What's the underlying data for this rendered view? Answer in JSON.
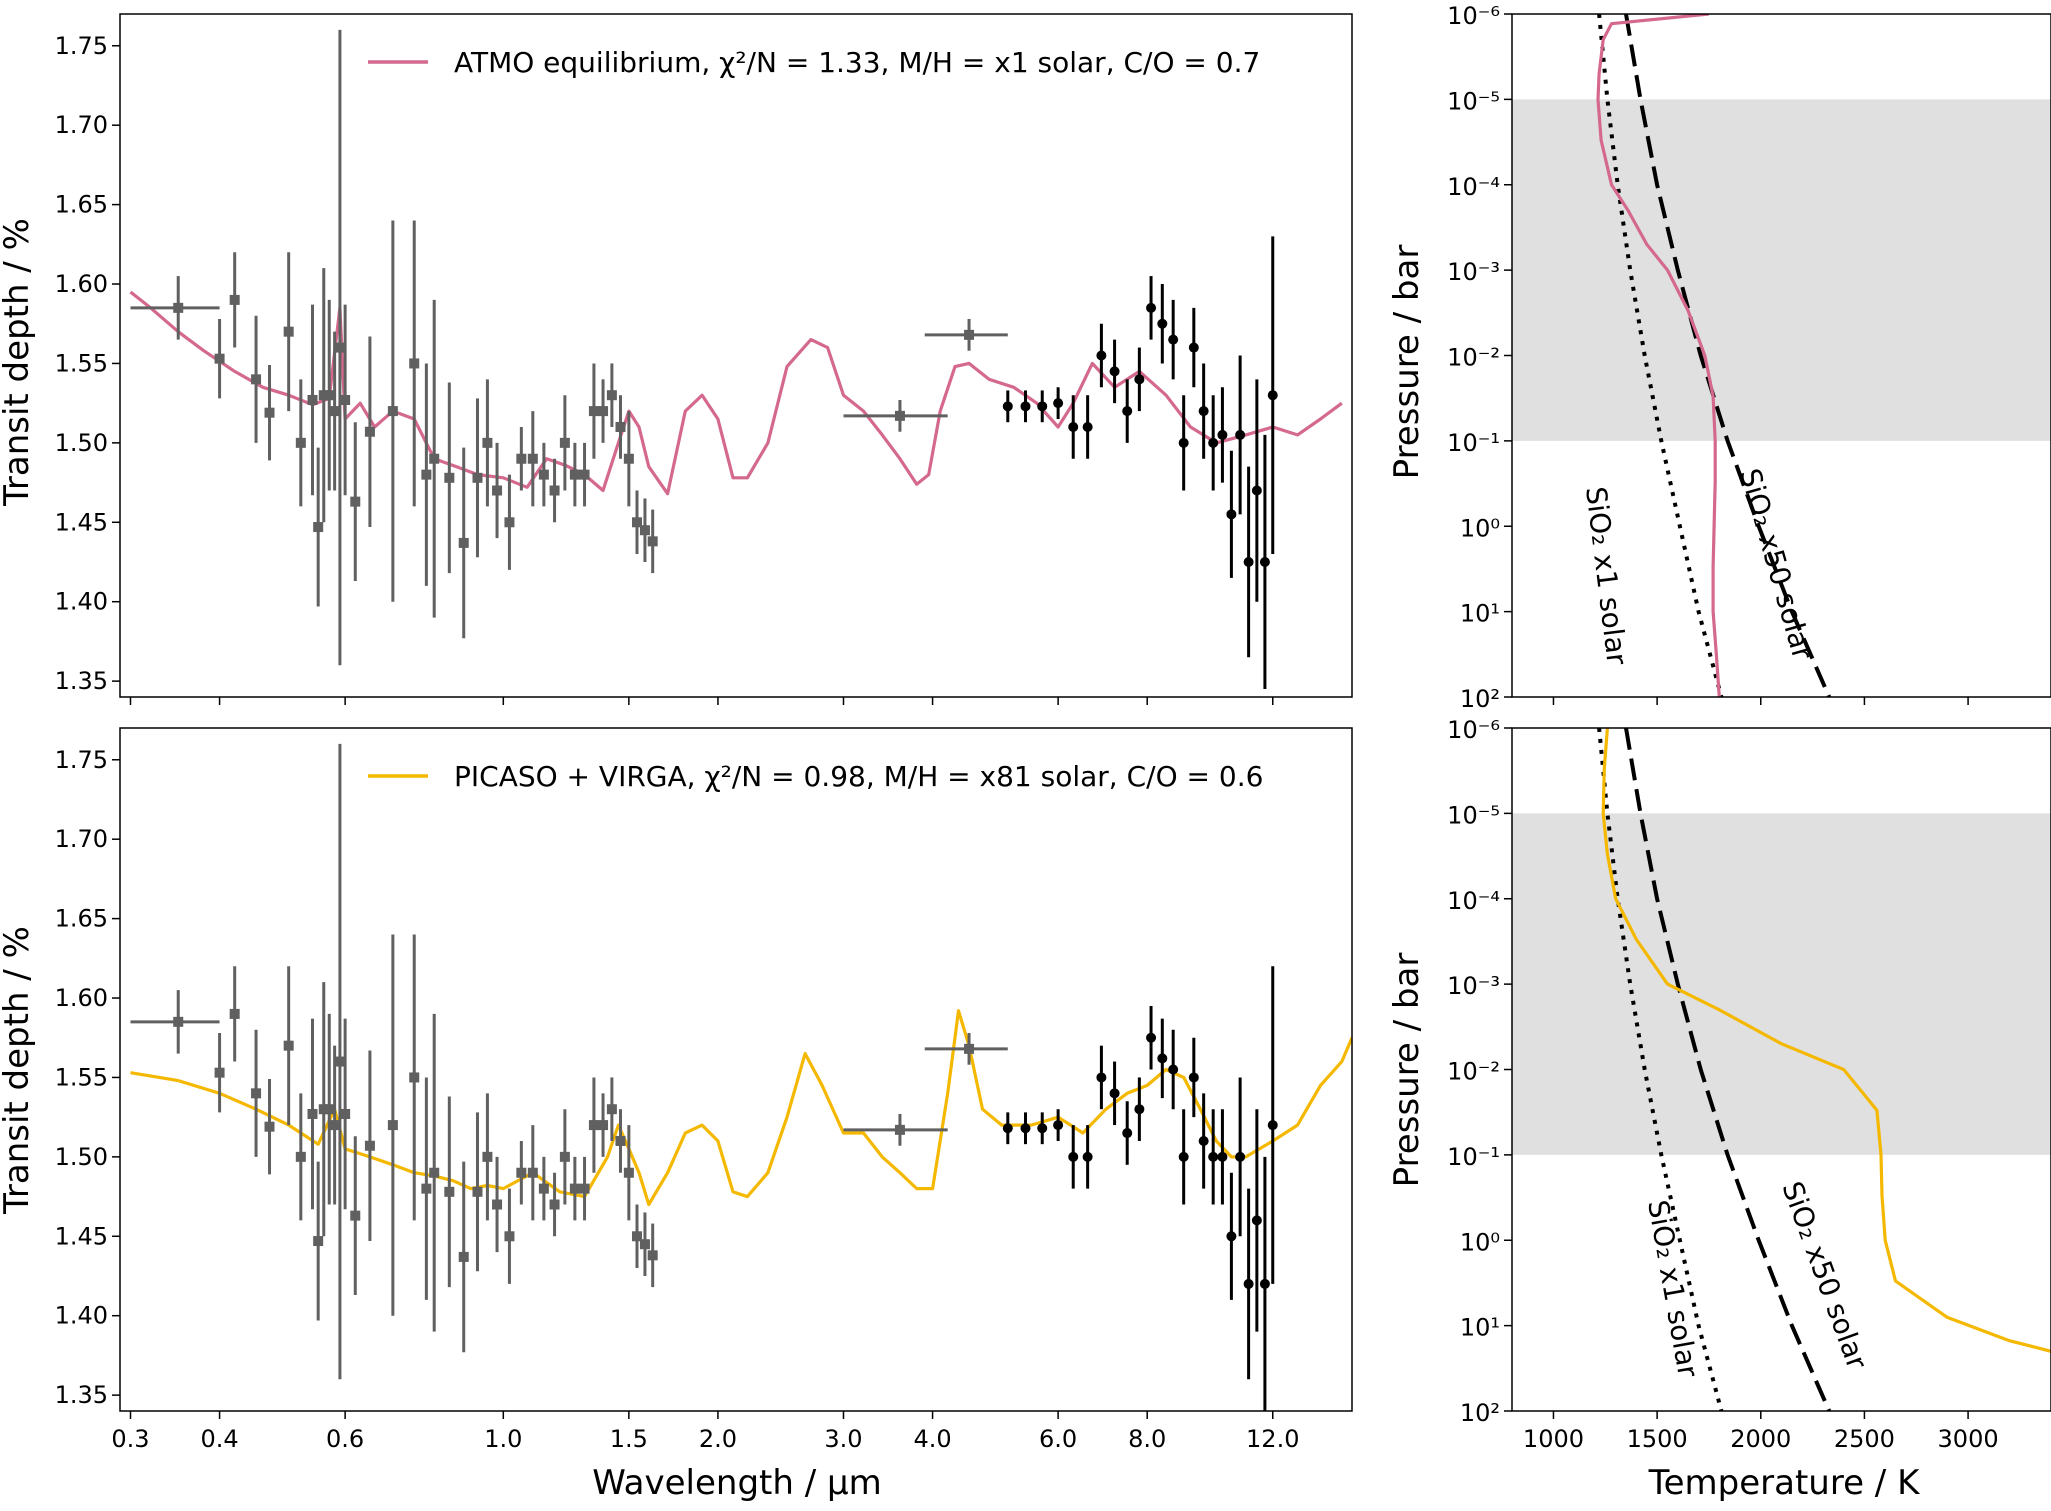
{
  "colors": {
    "atmo": "#d4688e",
    "picaso": "#f5b800",
    "hst": "#606060",
    "jwst": "#000000",
    "band": "#e0e0e0"
  },
  "labels": {
    "top_ylabel": "Transit depth / %",
    "bottom_ylabel": "Transit depth / %",
    "xlabel": "Wavelength / µm",
    "pt_top_ylabel": "Pressure / bar",
    "pt_bottom_ylabel": "Pressure / bar",
    "pt_xlabel": "Temperature / K",
    "legend_top": "ATMO equilibrium, χ²/N = 1.33, M/H = x1 solar, C/O = 0.7",
    "legend_bottom": "PICASO + VIRGA, χ²/N = 0.98, M/H = x81 solar, C/O = 0.6",
    "annot_x1": "SiO₂ x1 solar",
    "annot_x50": "SiO₂ x50 solar"
  },
  "chart_data": [
    {
      "type": "line",
      "panel": "top-left",
      "title": "",
      "xlabel": "",
      "ylabel": "Transit depth / %",
      "xscale": "log",
      "xlim": [
        0.29,
        15.5
      ],
      "ylim": [
        1.34,
        1.77
      ],
      "xticks": [
        0.3,
        0.4,
        0.6,
        1.0,
        1.5,
        2.0,
        3.0,
        4.0,
        6.0,
        8.0,
        12.0
      ],
      "xtick_labels": [],
      "yticks": [
        1.35,
        1.4,
        1.45,
        1.5,
        1.55,
        1.6,
        1.65,
        1.7,
        1.75
      ],
      "ytick_labels": [
        "1.35",
        "1.40",
        "1.45",
        "1.50",
        "1.55",
        "1.60",
        "1.65",
        "1.70",
        "1.75"
      ],
      "legend": "top-right",
      "model": {
        "name": "ATMO equilibrium, χ²/N = 1.33, M/H = x1 solar, C/O = 0.7",
        "x": [
          0.3,
          0.32,
          0.35,
          0.38,
          0.42,
          0.46,
          0.5,
          0.54,
          0.57,
          0.59,
          0.6,
          0.63,
          0.66,
          0.7,
          0.75,
          0.8,
          0.86,
          0.92,
          1.0,
          1.08,
          1.15,
          1.22,
          1.3,
          1.38,
          1.45,
          1.5,
          1.55,
          1.6,
          1.7,
          1.8,
          1.9,
          2.0,
          2.1,
          2.2,
          2.35,
          2.5,
          2.7,
          2.85,
          3.0,
          3.2,
          3.4,
          3.6,
          3.8,
          3.95,
          4.1,
          4.3,
          4.5,
          4.8,
          5.2,
          5.6,
          6.0,
          6.3,
          6.7,
          7.2,
          7.8,
          8.5,
          9.2,
          10.0,
          11.0,
          12.0,
          13.0,
          14.0,
          15.0
        ],
        "y": [
          1.595,
          1.585,
          1.57,
          1.558,
          1.545,
          1.535,
          1.53,
          1.524,
          1.528,
          1.585,
          1.515,
          1.525,
          1.51,
          1.52,
          1.515,
          1.49,
          1.485,
          1.48,
          1.478,
          1.472,
          1.49,
          1.486,
          1.48,
          1.47,
          1.5,
          1.52,
          1.51,
          1.485,
          1.468,
          1.52,
          1.53,
          1.515,
          1.478,
          1.478,
          1.5,
          1.548,
          1.565,
          1.56,
          1.53,
          1.52,
          1.505,
          1.49,
          1.474,
          1.48,
          1.52,
          1.548,
          1.55,
          1.54,
          1.535,
          1.525,
          1.51,
          1.525,
          1.55,
          1.535,
          1.545,
          1.53,
          1.51,
          1.5,
          1.505,
          1.51,
          1.505,
          1.515,
          1.525
        ]
      },
      "hst_points": {
        "x": [
          0.35,
          0.4,
          0.42,
          0.45,
          0.47,
          0.5,
          0.52,
          0.54,
          0.55,
          0.56,
          0.57,
          0.58,
          0.59,
          0.6,
          0.62,
          0.65,
          0.7,
          0.75,
          0.78,
          0.8,
          0.84,
          0.88,
          0.92,
          0.95,
          0.98,
          1.02,
          1.06,
          1.1,
          1.14,
          1.18,
          1.22,
          1.26,
          1.3,
          1.34,
          1.38,
          1.42,
          1.46,
          1.5,
          1.54,
          1.58,
          1.62,
          3.6,
          4.5
        ],
        "y": [
          1.585,
          1.553,
          1.59,
          1.54,
          1.519,
          1.57,
          1.5,
          1.527,
          1.447,
          1.53,
          1.53,
          1.52,
          1.56,
          1.527,
          1.463,
          1.507,
          1.52,
          1.55,
          1.48,
          1.49,
          1.478,
          1.437,
          1.478,
          1.5,
          1.47,
          1.45,
          1.49,
          1.49,
          1.48,
          1.47,
          1.5,
          1.48,
          1.48,
          1.52,
          1.52,
          1.53,
          1.51,
          1.49,
          1.45,
          1.445,
          1.438,
          1.517,
          1.568
        ],
        "yerr": [
          0.02,
          0.025,
          0.03,
          0.04,
          0.03,
          0.05,
          0.04,
          0.06,
          0.05,
          0.08,
          0.06,
          0.05,
          0.2,
          0.06,
          0.05,
          0.06,
          0.12,
          0.09,
          0.07,
          0.1,
          0.06,
          0.06,
          0.05,
          0.04,
          0.03,
          0.03,
          0.02,
          0.03,
          0.02,
          0.02,
          0.03,
          0.02,
          0.02,
          0.03,
          0.02,
          0.02,
          0.02,
          0.03,
          0.02,
          0.02,
          0.02,
          0.01,
          0.01
        ],
        "xerr": [
          0.05,
          0,
          0,
          0,
          0,
          0,
          0,
          0,
          0,
          0,
          0,
          0,
          0,
          0,
          0,
          0,
          0,
          0,
          0,
          0,
          0,
          0,
          0,
          0,
          0,
          0,
          0,
          0,
          0,
          0,
          0,
          0,
          0,
          0,
          0,
          0,
          0,
          0,
          0,
          0,
          0,
          0.6,
          0.6
        ]
      },
      "jwst_points": {
        "x": [
          5.1,
          5.4,
          5.7,
          6.0,
          6.3,
          6.6,
          6.9,
          7.2,
          7.5,
          7.8,
          8.1,
          8.4,
          8.7,
          9.0,
          9.3,
          9.6,
          9.9,
          10.2,
          10.5,
          10.8,
          11.1,
          11.4,
          11.7,
          12.0
        ],
        "y": [
          1.523,
          1.523,
          1.523,
          1.525,
          1.51,
          1.51,
          1.555,
          1.545,
          1.52,
          1.54,
          1.585,
          1.575,
          1.565,
          1.5,
          1.56,
          1.52,
          1.5,
          1.505,
          1.455,
          1.505,
          1.425,
          1.47,
          1.425,
          1.53
        ],
        "yerr": [
          0.01,
          0.01,
          0.01,
          0.01,
          0.02,
          0.02,
          0.02,
          0.02,
          0.02,
          0.02,
          0.02,
          0.025,
          0.025,
          0.03,
          0.025,
          0.03,
          0.03,
          0.03,
          0.04,
          0.05,
          0.06,
          0.07,
          0.08,
          0.1
        ]
      }
    },
    {
      "type": "line",
      "panel": "bottom-left",
      "title": "",
      "xlabel": "Wavelength / µm",
      "ylabel": "Transit depth / %",
      "xscale": "log",
      "xlim": [
        0.29,
        15.5
      ],
      "ylim": [
        1.34,
        1.77
      ],
      "xticks": [
        0.3,
        0.4,
        0.6,
        1.0,
        1.5,
        2.0,
        3.0,
        4.0,
        6.0,
        8.0,
        12.0
      ],
      "xtick_labels": [
        "0.3",
        "0.4",
        "0.6",
        "1.0",
        "1.5",
        "2.0",
        "3.0",
        "4.0",
        "6.0",
        "8.0",
        "12.0"
      ],
      "yticks": [
        1.35,
        1.4,
        1.45,
        1.5,
        1.55,
        1.6,
        1.65,
        1.7,
        1.75
      ],
      "ytick_labels": [
        "1.35",
        "1.40",
        "1.45",
        "1.50",
        "1.55",
        "1.60",
        "1.65",
        "1.70",
        "1.75"
      ],
      "legend": "top-right",
      "model": {
        "name": "PICASO + VIRGA, χ²/N = 0.98, M/H = x81 solar, C/O = 0.6",
        "x": [
          0.3,
          0.35,
          0.4,
          0.45,
          0.5,
          0.55,
          0.58,
          0.6,
          0.65,
          0.7,
          0.75,
          0.8,
          0.85,
          0.9,
          0.95,
          1.0,
          1.1,
          1.2,
          1.3,
          1.4,
          1.45,
          1.5,
          1.55,
          1.6,
          1.7,
          1.8,
          1.9,
          2.0,
          2.1,
          2.2,
          2.35,
          2.5,
          2.65,
          2.8,
          3.0,
          3.2,
          3.4,
          3.6,
          3.8,
          4.0,
          4.2,
          4.35,
          4.5,
          4.7,
          5.0,
          5.5,
          6.0,
          6.5,
          7.0,
          7.5,
          8.0,
          8.5,
          9.0,
          9.5,
          10.0,
          10.5,
          11.0,
          12.0,
          13.0,
          14.0,
          15.0,
          15.5
        ],
        "y": [
          1.553,
          1.548,
          1.54,
          1.53,
          1.52,
          1.508,
          1.53,
          1.505,
          1.5,
          1.495,
          1.49,
          1.488,
          1.485,
          1.48,
          1.482,
          1.48,
          1.49,
          1.478,
          1.475,
          1.5,
          1.52,
          1.505,
          1.49,
          1.47,
          1.49,
          1.515,
          1.52,
          1.51,
          1.478,
          1.475,
          1.49,
          1.525,
          1.565,
          1.545,
          1.515,
          1.515,
          1.5,
          1.49,
          1.48,
          1.48,
          1.54,
          1.592,
          1.57,
          1.53,
          1.52,
          1.52,
          1.525,
          1.515,
          1.53,
          1.54,
          1.545,
          1.555,
          1.55,
          1.53,
          1.51,
          1.5,
          1.5,
          1.51,
          1.52,
          1.545,
          1.56,
          1.575
        ]
      },
      "hst_points": {
        "x": [
          0.35,
          0.4,
          0.42,
          0.45,
          0.47,
          0.5,
          0.52,
          0.54,
          0.55,
          0.56,
          0.57,
          0.58,
          0.59,
          0.6,
          0.62,
          0.65,
          0.7,
          0.75,
          0.78,
          0.8,
          0.84,
          0.88,
          0.92,
          0.95,
          0.98,
          1.02,
          1.06,
          1.1,
          1.14,
          1.18,
          1.22,
          1.26,
          1.3,
          1.34,
          1.38,
          1.42,
          1.46,
          1.5,
          1.54,
          1.58,
          1.62,
          3.6,
          4.5
        ],
        "y": [
          1.585,
          1.553,
          1.59,
          1.54,
          1.519,
          1.57,
          1.5,
          1.527,
          1.447,
          1.53,
          1.53,
          1.52,
          1.56,
          1.527,
          1.463,
          1.507,
          1.52,
          1.55,
          1.48,
          1.49,
          1.478,
          1.437,
          1.478,
          1.5,
          1.47,
          1.45,
          1.49,
          1.49,
          1.48,
          1.47,
          1.5,
          1.48,
          1.48,
          1.52,
          1.52,
          1.53,
          1.51,
          1.49,
          1.45,
          1.445,
          1.438,
          1.517,
          1.568
        ],
        "yerr": [
          0.02,
          0.025,
          0.03,
          0.04,
          0.03,
          0.05,
          0.04,
          0.06,
          0.05,
          0.08,
          0.06,
          0.05,
          0.2,
          0.06,
          0.05,
          0.06,
          0.12,
          0.09,
          0.07,
          0.1,
          0.06,
          0.06,
          0.05,
          0.04,
          0.03,
          0.03,
          0.02,
          0.03,
          0.02,
          0.02,
          0.03,
          0.02,
          0.02,
          0.03,
          0.02,
          0.02,
          0.02,
          0.03,
          0.02,
          0.02,
          0.02,
          0.01,
          0.01
        ],
        "xerr": [
          0.05,
          0,
          0,
          0,
          0,
          0,
          0,
          0,
          0,
          0,
          0,
          0,
          0,
          0,
          0,
          0,
          0,
          0,
          0,
          0,
          0,
          0,
          0,
          0,
          0,
          0,
          0,
          0,
          0,
          0,
          0,
          0,
          0,
          0,
          0,
          0,
          0,
          0,
          0,
          0,
          0,
          0.6,
          0.6
        ]
      },
      "jwst_points": {
        "x": [
          5.1,
          5.4,
          5.7,
          6.0,
          6.3,
          6.6,
          6.9,
          7.2,
          7.5,
          7.8,
          8.1,
          8.4,
          8.7,
          9.0,
          9.3,
          9.6,
          9.9,
          10.2,
          10.5,
          10.8,
          11.1,
          11.4,
          11.7,
          12.0
        ],
        "y": [
          1.518,
          1.518,
          1.518,
          1.52,
          1.5,
          1.5,
          1.55,
          1.54,
          1.515,
          1.53,
          1.575,
          1.562,
          1.555,
          1.5,
          1.55,
          1.51,
          1.5,
          1.5,
          1.45,
          1.5,
          1.42,
          1.46,
          1.42,
          1.52
        ],
        "yerr": [
          0.01,
          0.01,
          0.01,
          0.01,
          0.02,
          0.02,
          0.02,
          0.02,
          0.02,
          0.02,
          0.02,
          0.025,
          0.025,
          0.03,
          0.025,
          0.03,
          0.03,
          0.03,
          0.04,
          0.05,
          0.06,
          0.07,
          0.08,
          0.1
        ]
      }
    },
    {
      "type": "line",
      "panel": "top-right",
      "title": "",
      "xlabel": "",
      "ylabel": "Pressure / bar",
      "yscale": "log",
      "y_inverted": true,
      "xlim": [
        800,
        3400
      ],
      "ylim": [
        1e-06,
        100
      ],
      "xticks": [
        1000,
        1500,
        2000,
        2500,
        3000
      ],
      "xtick_labels": [],
      "yticks": [
        1e-06,
        1e-05,
        0.0001,
        0.001,
        0.01,
        0.1,
        1,
        10,
        100
      ],
      "ytick_labels": [
        "10⁻⁶",
        "10⁻⁵",
        "10⁻⁴",
        "10⁻³",
        "10⁻²",
        "10⁻¹",
        "10⁰",
        "10¹",
        "10²"
      ],
      "shaded_pressure_range": [
        1e-05,
        0.1
      ],
      "profile": {
        "name": "ATMO equilibrium",
        "T": [
          1750,
          1280,
          1240,
          1220,
          1215,
          1230,
          1280,
          1360,
          1450,
          1550,
          1650,
          1730,
          1770,
          1780,
          1780,
          1775,
          1770,
          1770,
          1785,
          1800
        ],
        "P": [
          1e-06,
          1.3e-06,
          2e-06,
          5e-06,
          1e-05,
          3e-05,
          0.0001,
          0.0002,
          0.0005,
          0.001,
          0.003,
          0.01,
          0.03,
          0.1,
          0.3,
          1,
          3,
          10,
          30,
          100
        ]
      },
      "cond_x1": {
        "name": "SiO₂ x1 solar",
        "T": [
          1220,
          1260,
          1310,
          1370,
          1440,
          1520,
          1610,
          1700,
          1810
        ],
        "P": [
          1e-06,
          1e-05,
          0.0001,
          0.001,
          0.01,
          0.1,
          1,
          10,
          100
        ]
      },
      "cond_x50": {
        "name": "SiO₂ x50 solar",
        "T": [
          1350,
          1420,
          1500,
          1600,
          1710,
          1840,
          1990,
          2150,
          2330
        ],
        "P": [
          1e-06,
          1e-05,
          0.0001,
          0.001,
          0.01,
          0.1,
          1,
          10,
          100
        ]
      }
    },
    {
      "type": "line",
      "panel": "bottom-right",
      "title": "",
      "xlabel": "Temperature / K",
      "ylabel": "Pressure / bar",
      "yscale": "log",
      "y_inverted": true,
      "xlim": [
        800,
        3400
      ],
      "ylim": [
        1e-06,
        100
      ],
      "xticks": [
        1000,
        1500,
        2000,
        2500,
        3000
      ],
      "xtick_labels": [
        "1000",
        "1500",
        "2000",
        "2500",
        "3000"
      ],
      "yticks": [
        1e-06,
        1e-05,
        0.0001,
        0.001,
        0.01,
        0.1,
        1,
        10,
        100
      ],
      "ytick_labels": [
        "10⁻⁶",
        "10⁻⁵",
        "10⁻⁴",
        "10⁻³",
        "10⁻²",
        "10⁻¹",
        "10⁰",
        "10¹",
        "10²"
      ],
      "shaded_pressure_range": [
        1e-05,
        0.1
      ],
      "profile": {
        "name": "PICASO + VIRGA",
        "T": [
          1260,
          1245,
          1240,
          1260,
          1300,
          1400,
          1550,
          1800,
          2100,
          2400,
          2560,
          2580,
          2585,
          2600,
          2650,
          2900,
          3200,
          3400
        ],
        "P": [
          1e-06,
          3e-06,
          1e-05,
          3e-05,
          0.0001,
          0.0003,
          0.001,
          0.002,
          0.005,
          0.01,
          0.03,
          0.1,
          0.3,
          1,
          3,
          8,
          15,
          20
        ]
      },
      "cond_x1": {
        "name": "SiO₂ x1 solar",
        "T": [
          1220,
          1260,
          1310,
          1370,
          1440,
          1520,
          1610,
          1700,
          1810
        ],
        "P": [
          1e-06,
          1e-05,
          0.0001,
          0.001,
          0.01,
          0.1,
          1,
          10,
          100
        ]
      },
      "cond_x50": {
        "name": "SiO₂ x50 solar",
        "T": [
          1350,
          1420,
          1500,
          1600,
          1710,
          1840,
          1990,
          2150,
          2330
        ],
        "P": [
          1e-06,
          1e-05,
          0.0001,
          0.001,
          0.01,
          0.1,
          1,
          10,
          100
        ]
      }
    }
  ]
}
